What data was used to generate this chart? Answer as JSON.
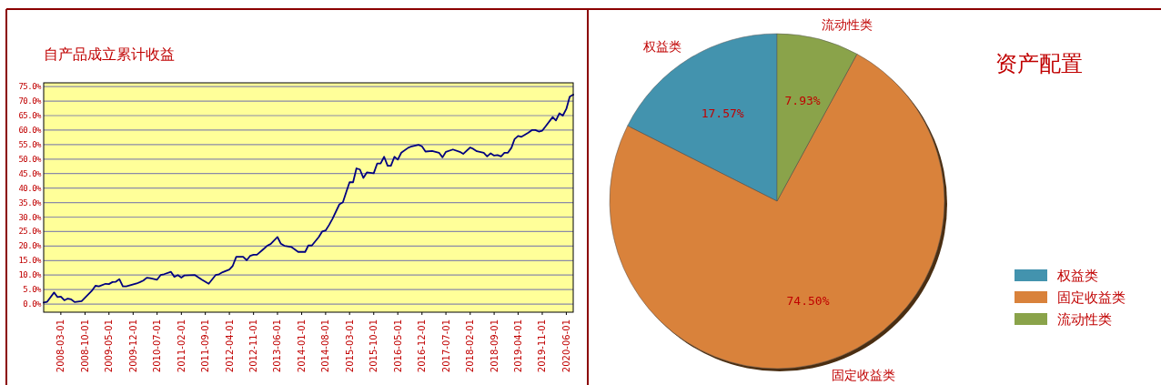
{
  "chart_data": [
    {
      "type": "line",
      "title": "自产品成立累计收益",
      "grid": "y",
      "line_style": "solid",
      "marker": "none",
      "xlim": [
        "2007-10",
        "2020-08"
      ],
      "ylim": [
        -2.8,
        76.3
      ],
      "xticks": [
        {
          "value": "2008-03-01",
          "label": "2008-03-01"
        },
        {
          "value": "2008-10-01",
          "label": "2008-10-01"
        },
        {
          "value": "2009-05-01",
          "label": "2009-05-01"
        },
        {
          "value": "2009-12-01",
          "label": "2009-12-01"
        },
        {
          "value": "2010-07-01",
          "label": "2010-07-01"
        },
        {
          "value": "2011-02-01",
          "label": "2011-02-01"
        },
        {
          "value": "2011-09-01",
          "label": "2011-09-01"
        },
        {
          "value": "2012-04-01",
          "label": "2012-04-01"
        },
        {
          "value": "2012-11-01",
          "label": "2012-11-01"
        },
        {
          "value": "2013-06-01",
          "label": "2013-06-01"
        },
        {
          "value": "2014-01-01",
          "label": "2014-01-01"
        },
        {
          "value": "2014-08-01",
          "label": "2014-08-01"
        },
        {
          "value": "2015-03-01",
          "label": "2015-03-01"
        },
        {
          "value": "2015-10-01",
          "label": "2015-10-01"
        },
        {
          "value": "2016-05-01",
          "label": "2016-05-01"
        },
        {
          "value": "2016-12-01",
          "label": "2016-12-01"
        },
        {
          "value": "2017-07-01",
          "label": "2017-07-01"
        },
        {
          "value": "2018-02-01",
          "label": "2018-02-01"
        },
        {
          "value": "2018-09-01",
          "label": "2018-09-01"
        },
        {
          "value": "2019-04-01",
          "label": "2019-04-01"
        },
        {
          "value": "2019-11-01",
          "label": "2019-11-01"
        },
        {
          "value": "2020-06-01",
          "label": "2020-06-01"
        }
      ],
      "yticks": [
        {
          "value": 0,
          "label": "0.0%"
        },
        {
          "value": 5,
          "label": "5.0%"
        },
        {
          "value": 10,
          "label": "10.0%"
        },
        {
          "value": 15,
          "label": "15.0%"
        },
        {
          "value": 20,
          "label": "20.0%"
        },
        {
          "value": 25,
          "label": "25.0%"
        },
        {
          "value": 30,
          "label": "30.0%"
        },
        {
          "value": 35,
          "label": "35.0%"
        },
        {
          "value": 40,
          "label": "40.0%"
        },
        {
          "value": 45,
          "label": "45.0%"
        },
        {
          "value": 50,
          "label": "50.0%"
        },
        {
          "value": 55,
          "label": "55.0%"
        },
        {
          "value": 60,
          "label": "60.0%"
        },
        {
          "value": 65,
          "label": "65.0%"
        },
        {
          "value": 70,
          "label": "70.0%"
        },
        {
          "value": 75,
          "label": "75.0%"
        }
      ],
      "x": [
        "2007-10",
        "2007-11",
        "2008-01",
        "2008-02",
        "2008-03",
        "2008-04",
        "2008-05",
        "2008-06",
        "2008-07",
        "2008-09",
        "2008-12",
        "2009-01",
        "2009-02",
        "2009-04",
        "2009-05",
        "2009-06",
        "2009-07",
        "2009-08",
        "2009-09",
        "2009-10",
        "2010-01",
        "2010-02",
        "2010-03",
        "2010-04",
        "2010-05",
        "2010-07",
        "2010-08",
        "2010-09",
        "2010-11",
        "2010-12",
        "2011-01",
        "2011-02",
        "2011-03",
        "2011-06",
        "2011-08",
        "2011-10",
        "2011-12",
        "2012-01",
        "2012-02",
        "2012-04",
        "2012-05",
        "2012-06",
        "2012-08",
        "2012-09",
        "2012-10",
        "2012-11",
        "2012-12",
        "2013-02",
        "2013-03",
        "2013-04",
        "2013-06",
        "2013-07",
        "2013-08",
        "2013-10",
        "2013-12",
        "2014-02",
        "2014-03",
        "2014-04",
        "2014-06",
        "2014-07",
        "2014-08",
        "2014-09",
        "2014-10",
        "2014-12",
        "2015-01",
        "2015-02",
        "2015-03",
        "2015-04",
        "2015-05",
        "2015-06",
        "2015-07",
        "2015-08",
        "2015-10",
        "2015-11",
        "2015-12",
        "2016-01",
        "2016-02",
        "2016-03",
        "2016-04",
        "2016-05",
        "2016-06",
        "2016-08",
        "2016-09",
        "2016-11",
        "2016-12",
        "2017-01",
        "2017-03",
        "2017-05",
        "2017-06",
        "2017-07",
        "2017-09",
        "2017-11",
        "2017-12",
        "2018-02",
        "2018-03",
        "2018-04",
        "2018-06",
        "2018-07",
        "2018-08",
        "2018-09",
        "2018-10",
        "2018-11",
        "2018-12",
        "2019-01",
        "2019-02",
        "2019-03",
        "2019-04",
        "2019-05",
        "2019-06",
        "2019-07",
        "2019-08",
        "2019-09",
        "2019-10",
        "2019-11",
        "2019-12",
        "2020-02",
        "2020-03",
        "2020-04",
        "2020-05",
        "2020-06",
        "2020-07",
        "2020-08"
      ],
      "series": [
        {
          "color": "#000080",
          "values": [
            0.5,
            0.8,
            4.0,
            2.4,
            2.6,
            1.3,
            1.9,
            1.6,
            0.7,
            1.0,
            4.6,
            6.3,
            6.1,
            7.0,
            6.9,
            7.6,
            7.7,
            8.6,
            6.1,
            6.1,
            7.1,
            7.6,
            8.1,
            9.1,
            8.9,
            8.4,
            10.0,
            10.3,
            11.1,
            9.4,
            10.0,
            9.1,
            9.9,
            10.0,
            8.4,
            7.0,
            10.0,
            10.3,
            11.0,
            11.9,
            13.2,
            16.3,
            16.3,
            15.1,
            16.6,
            17.0,
            17.0,
            19.1,
            20.1,
            20.7,
            23.1,
            20.8,
            20.1,
            19.7,
            18.0,
            18.0,
            20.2,
            20.2,
            23.1,
            25.0,
            25.4,
            27.3,
            29.4,
            34.4,
            35.1,
            38.8,
            42.0,
            42.0,
            46.8,
            46.4,
            43.5,
            45.4,
            45.1,
            48.5,
            48.5,
            50.8,
            47.7,
            47.7,
            50.8,
            49.8,
            52.2,
            53.9,
            54.4,
            54.9,
            54.4,
            52.6,
            52.8,
            52.2,
            50.6,
            52.5,
            53.3,
            52.5,
            51.8,
            54.0,
            53.5,
            52.7,
            52.2,
            50.9,
            52.0,
            51.2,
            51.4,
            50.9,
            52.2,
            52.2,
            53.9,
            56.9,
            58.0,
            57.7,
            58.4,
            59.1,
            60.0,
            60.0,
            59.5,
            59.8,
            61.3,
            64.5,
            63.3,
            65.8,
            65.0,
            67.3,
            71.5,
            72.2
          ]
        }
      ]
    },
    {
      "type": "pie",
      "title": "资产配置",
      "legend": "right",
      "categories": [
        "权益类",
        "固定收益类",
        "流动性类"
      ],
      "values": [
        17.57,
        74.5,
        7.93
      ],
      "colors": [
        "#4393ae",
        "#d9823b",
        "#8aa34a"
      ],
      "value_labels": [
        "17.57%",
        "74.50%",
        "7.93%"
      ]
    }
  ]
}
